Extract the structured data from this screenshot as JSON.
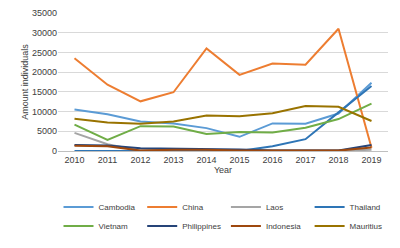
{
  "chart_data": {
    "type": "line",
    "x_label": "Year",
    "y_label": "Amount individuals",
    "categories": [
      "2010",
      "2011",
      "2012",
      "2013",
      "2014",
      "2015",
      "2016",
      "2017",
      "2018",
      "2019"
    ],
    "series": [
      {
        "name": "Cambodia",
        "color": "#5b9bd5",
        "values": [
          10500,
          9300,
          7500,
          7000,
          5800,
          3600,
          7000,
          6900,
          9500,
          17300
        ]
      },
      {
        "name": "China",
        "color": "#ed7d31",
        "values": [
          23500,
          16800,
          12600,
          14900,
          26000,
          19300,
          22200,
          21900,
          31000,
          800
        ]
      },
      {
        "name": "Laos",
        "color": "#a5a5a5",
        "values": [
          4600,
          1700,
          100,
          300,
          200,
          100,
          100,
          100,
          100,
          300
        ]
      },
      {
        "name": "Thailand",
        "color": "#2e75b6",
        "values": [
          0,
          0,
          0,
          0,
          0,
          0,
          1200,
          3000,
          9800,
          16500
        ]
      },
      {
        "name": "Vietnam",
        "color": "#70ad47",
        "values": [
          6700,
          2800,
          6300,
          6200,
          4300,
          4800,
          4700,
          5900,
          8100,
          12000
        ]
      },
      {
        "name": "Philippines",
        "color": "#264478",
        "values": [
          1500,
          1400,
          700,
          600,
          500,
          400,
          100,
          100,
          100,
          1500
        ]
      },
      {
        "name": "Indonesia",
        "color": "#9e480e",
        "values": [
          1300,
          1200,
          100,
          300,
          300,
          100,
          100,
          100,
          100,
          900
        ]
      },
      {
        "name": "Mauritius",
        "color": "#997300",
        "values": [
          8200,
          7200,
          6900,
          7500,
          9000,
          8800,
          9600,
          11400,
          11200,
          7600
        ]
      }
    ],
    "ylim": [
      0,
      35000
    ],
    "yticks": [
      0,
      5000,
      10000,
      15000,
      20000,
      25000,
      30000,
      35000
    ],
    "grid": true,
    "legend": "bottom"
  }
}
